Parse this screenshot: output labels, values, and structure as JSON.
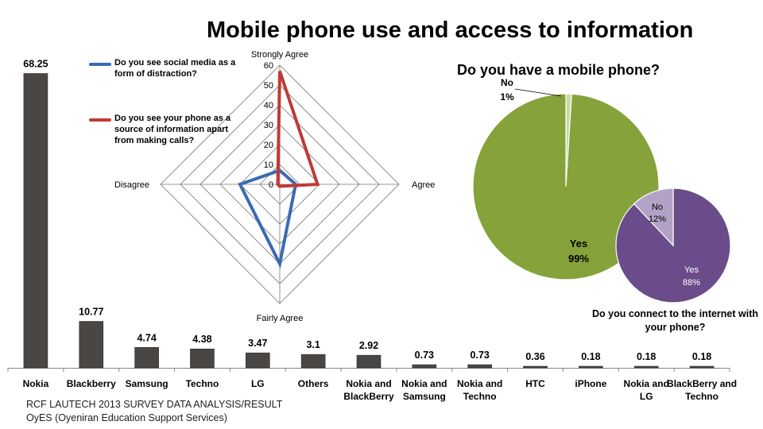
{
  "title": "Mobile phone use and access to information",
  "footer": {
    "line1": "RCF LAUTECH 2013  SURVEY DATA ANALYSIS/RESULT",
    "line2": "OyES (Oyeniran Education Support Services)"
  },
  "colors": {
    "bar": "#4a4644",
    "series_blue": "#3a6bb3",
    "series_red": "#bf3a34",
    "pie1_yes": "#86a23a",
    "pie1_no": "#c9d9a8",
    "pie2_yes": "#6a4c8a",
    "pie2_no": "#b3a2c6"
  },
  "chart_data": [
    {
      "type": "bar",
      "categories": [
        "Nokia",
        "Blackberry",
        "Samsung",
        "Techno",
        "LG",
        "Others",
        "Nokia and BlackBerry",
        "Nokia and Samsung",
        "Nokia and Techno",
        "HTC",
        "iPhone",
        "Nokia and LG",
        "BlackBerry and Techno"
      ],
      "values": [
        68.25,
        10.77,
        4.74,
        4.38,
        3.47,
        3.1,
        2.92,
        0.73,
        0.73,
        0.36,
        0.18,
        0.18,
        0.18
      ],
      "value_labels": [
        "68.25",
        "10.77",
        "4.74",
        "4.38",
        "3.47",
        "3.1",
        "2.92",
        "0.73",
        "0.73",
        "0.36",
        "0.18",
        "0.18",
        "0.18"
      ],
      "ylim": [
        0,
        70
      ]
    },
    {
      "type": "radar",
      "axes": [
        "Strongly Agree",
        "Agree",
        "Fairly Agree",
        "Disagree"
      ],
      "ticks": [
        0,
        10,
        20,
        30,
        40,
        50,
        60
      ],
      "range": [
        0,
        60
      ],
      "series": [
        {
          "name": "Do you see social media as a form of distraction?",
          "values": [
            7,
            8,
            40,
            20
          ]
        },
        {
          "name": "Do you see your phone as a source of information apart from making calls?",
          "values": [
            57,
            19,
            1,
            1
          ]
        }
      ]
    },
    {
      "type": "pie",
      "title": "Do you have a mobile phone?",
      "slices": [
        {
          "label": "Yes",
          "pct_label": "99%",
          "value": 99
        },
        {
          "label": "No",
          "pct_label": "1%",
          "value": 1
        }
      ]
    },
    {
      "type": "pie",
      "title": "Do you connect to the internet with your phone?",
      "slices": [
        {
          "label": "Yes",
          "pct_label": "88%",
          "value": 88
        },
        {
          "label": "No",
          "pct_label": "12%",
          "value": 12
        }
      ]
    }
  ]
}
